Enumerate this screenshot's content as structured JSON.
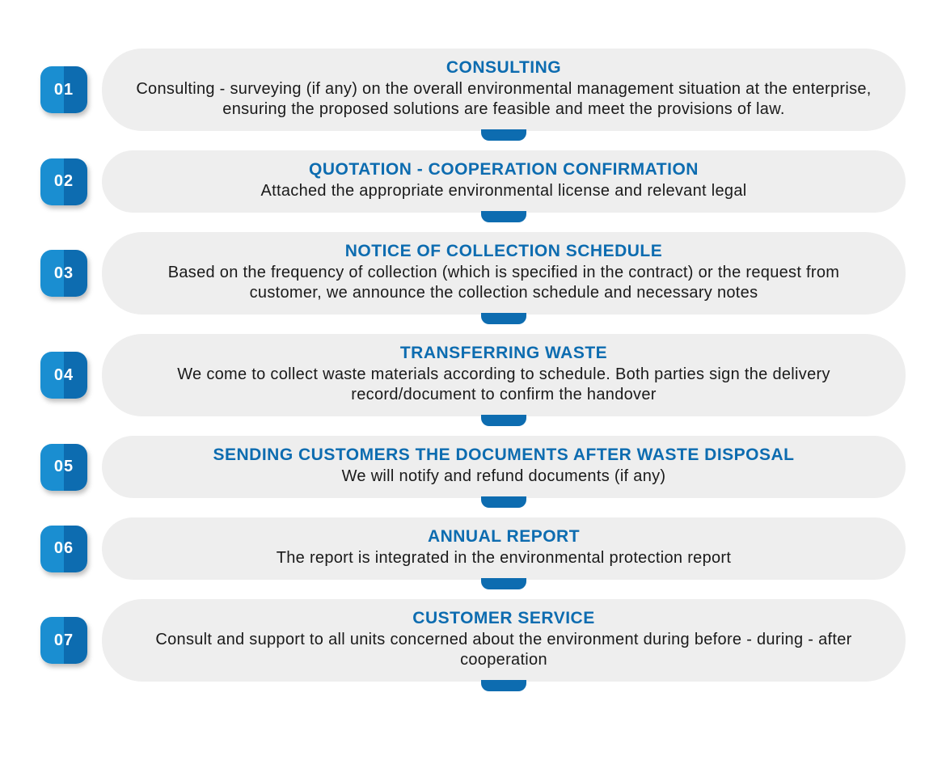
{
  "infographic": {
    "type": "process-steps",
    "background_color": "#ffffff",
    "card_background_color": "#eeeeee",
    "badge_color_left": "#1a8ed1",
    "badge_color_right": "#0d6cb0",
    "connector_color": "#0d6cb0",
    "title_color": "#0d6cb0",
    "desc_color": "#1a1a1a",
    "badge_text_color": "#ffffff",
    "title_fontsize": 21,
    "desc_fontsize": 20,
    "badge_fontsize": 20,
    "badge_radius": 14,
    "card_radius": 50,
    "steps": [
      {
        "num": "01",
        "title": "CONSULTING",
        "desc": "Consulting - surveying (if any) on the overall environmental management situation at the enterprise, ensuring the proposed solutions are feasible and meet the provisions of law."
      },
      {
        "num": "02",
        "title": "QUOTATION - COOPERATION CONFIRMATION",
        "desc": "Attached the appropriate environmental license and relevant legal"
      },
      {
        "num": "03",
        "title": "NOTICE OF COLLECTION SCHEDULE",
        "desc": "Based on the frequency of collection (which is specified in the contract) or the request from customer, we announce the collection schedule and necessary notes"
      },
      {
        "num": "04",
        "title": "TRANSFERRING WASTE",
        "desc": "We come to collect waste materials according to schedule. Both parties sign the delivery record/document to confirm the handover"
      },
      {
        "num": "05",
        "title": "SENDING CUSTOMERS THE DOCUMENTS AFTER WASTE DISPOSAL",
        "desc": "We will notify and refund documents (if any)"
      },
      {
        "num": "06",
        "title": "ANNUAL REPORT",
        "desc": "The report is integrated in the environmental protection report"
      },
      {
        "num": "07",
        "title": "CUSTOMER SERVICE",
        "desc": "Consult and support to all units concerned about the environment during before - during - after cooperation"
      }
    ]
  }
}
